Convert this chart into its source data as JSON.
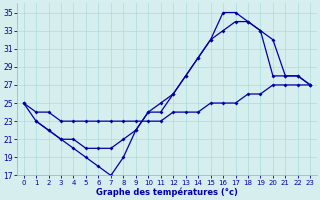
{
  "xlabel": "Graphe des températures (°c)",
  "xlim": [
    -0.5,
    23.5
  ],
  "ylim": [
    17,
    36
  ],
  "xticks": [
    0,
    1,
    2,
    3,
    4,
    5,
    6,
    7,
    8,
    9,
    10,
    11,
    12,
    13,
    14,
    15,
    16,
    17,
    18,
    19,
    20,
    21,
    22,
    23
  ],
  "yticks": [
    17,
    19,
    21,
    23,
    25,
    27,
    29,
    31,
    33,
    35
  ],
  "bg_color": "#d6eeee",
  "line_color": "#0000aa",
  "grid_color": "#aadddd",
  "lineA_x": [
    0,
    1,
    2,
    3,
    4,
    5,
    6,
    7,
    8,
    9,
    10,
    11,
    12,
    13,
    14,
    15,
    16,
    17,
    18,
    19,
    20,
    21,
    22,
    23
  ],
  "lineA_y": [
    25,
    24,
    24,
    23,
    23,
    23,
    23,
    23,
    23,
    23,
    23,
    23,
    24,
    24,
    24,
    25,
    25,
    25,
    26,
    26,
    27,
    27,
    27,
    27
  ],
  "lineB_x": [
    0,
    1,
    2,
    3,
    4,
    5,
    6,
    7,
    8,
    9,
    10,
    11,
    12,
    13,
    14,
    15,
    16,
    17,
    18,
    19,
    20,
    21,
    22,
    23
  ],
  "lineB_y": [
    25,
    23,
    22,
    21,
    20,
    19,
    18,
    17,
    19,
    22,
    24,
    24,
    26,
    28,
    30,
    32,
    35,
    35,
    34,
    33,
    28,
    28,
    28,
    27
  ],
  "lineC_x": [
    1,
    2,
    3,
    4,
    5,
    6,
    7,
    8,
    9,
    10,
    11,
    12,
    13,
    14,
    15,
    16,
    17,
    18,
    19,
    20,
    21,
    22,
    23
  ],
  "lineC_y": [
    23,
    22,
    21,
    21,
    20,
    20,
    20,
    21,
    22,
    24,
    25,
    26,
    28,
    30,
    32,
    33,
    34,
    34,
    33,
    32,
    28,
    28,
    27
  ]
}
